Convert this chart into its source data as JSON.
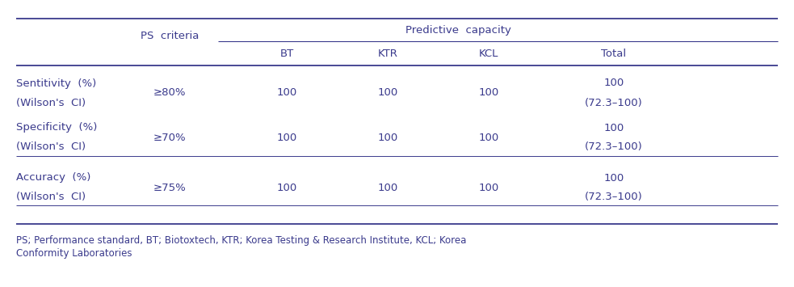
{
  "title_main": "Predictive  capacity",
  "subheader_left": "PS  criteria",
  "rows": [
    {
      "label_line1": "Sentitivity  (%)",
      "label_line2": "(Wilson's  CI)",
      "criteria": "≥80%",
      "bt": "100",
      "ktr": "100",
      "kcl": "100",
      "total_line1": "100",
      "total_line2": "(72.3–100)"
    },
    {
      "label_line1": "Specificity  (%)",
      "label_line2": "(Wilson's  CI)",
      "criteria": "≥70%",
      "bt": "100",
      "ktr": "100",
      "kcl": "100",
      "total_line1": "100",
      "total_line2": "(72.3–100)"
    },
    {
      "label_line1": "Accuracy  (%)",
      "label_line2": "(Wilson's  CI)",
      "criteria": "≥75%",
      "bt": "100",
      "ktr": "100",
      "kcl": "100",
      "total_line1": "100",
      "total_line2": "(72.3–100)"
    }
  ],
  "footnote_line1": "PS; Performance standard, BT; Biotoxtech, KTR; Korea Testing & Research Institute, KCL; Korea",
  "footnote_line2": "Conformity Laboratories",
  "text_color": "#3a3a8c",
  "line_color": "#3a3a8c",
  "bg_color": "#ffffff",
  "font_size": 9.5,
  "footnote_font_size": 8.5
}
